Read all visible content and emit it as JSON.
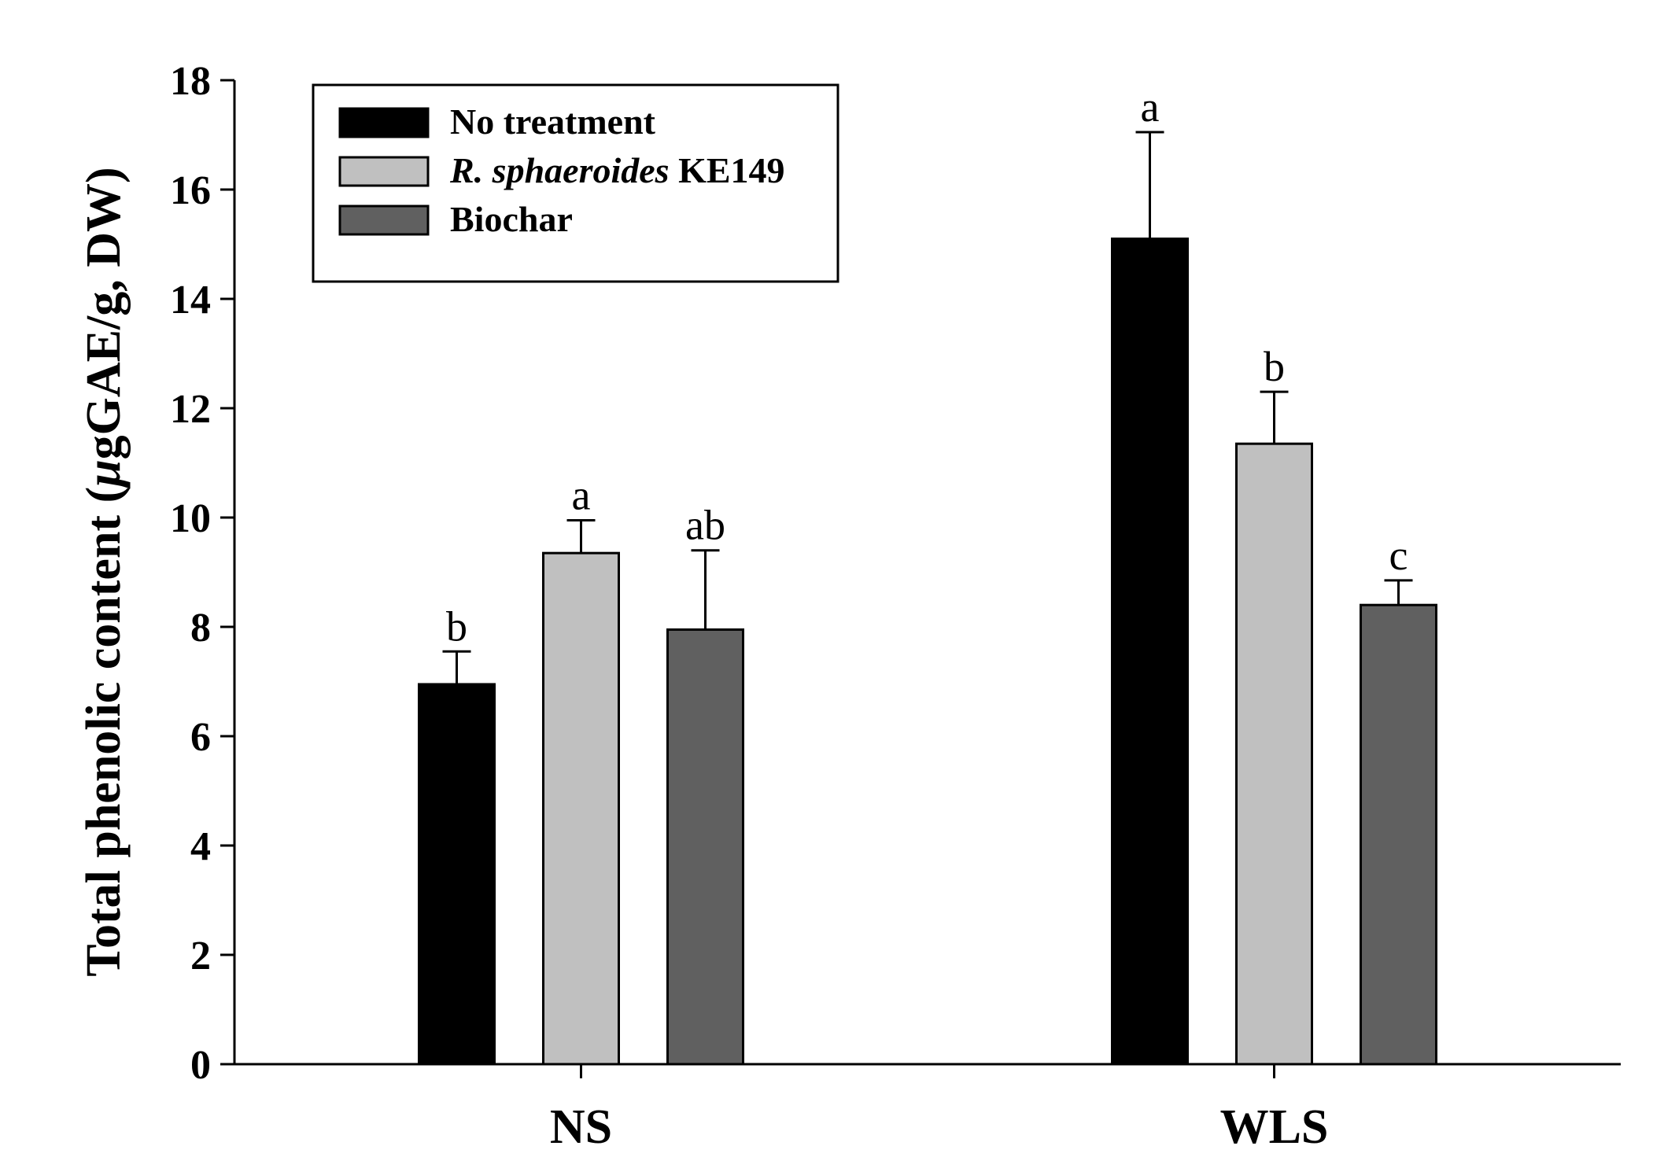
{
  "chart_data": {
    "type": "bar",
    "ylabel": {
      "pre": "Total phenolic content (",
      "mu": "μ",
      "post": "gGAE/g, DW)"
    },
    "categories": [
      "NS",
      "WLS"
    ],
    "ylim": [
      0,
      18
    ],
    "yticks": [
      0,
      2,
      4,
      6,
      8,
      10,
      12,
      14,
      16,
      18
    ],
    "legend_position": "top-left",
    "series": [
      {
        "name": "No treatment",
        "color": "#000000",
        "values": [
          6.95,
          15.1
        ],
        "errors": [
          0.6,
          1.95
        ],
        "labels": [
          "b",
          "a"
        ]
      },
      {
        "name_italic": "R. sphaeroides",
        "name_rest": " KE149",
        "color": "#c0c0c0",
        "values": [
          9.35,
          11.35
        ],
        "errors": [
          0.6,
          0.95
        ],
        "labels": [
          "a",
          "b"
        ]
      },
      {
        "name": "Biochar",
        "color": "#606060",
        "values": [
          7.95,
          8.4
        ],
        "errors": [
          1.45,
          0.45
        ],
        "labels": [
          "ab",
          "c"
        ]
      }
    ]
  }
}
